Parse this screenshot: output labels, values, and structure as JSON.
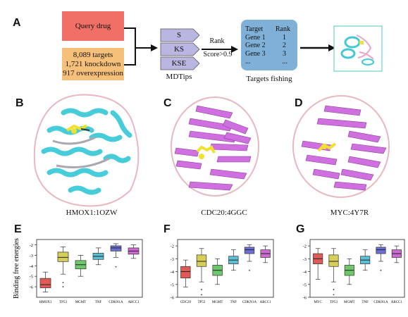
{
  "panels": {
    "a": "A",
    "b": "B",
    "c": "C",
    "d": "D",
    "e": "E",
    "f": "F",
    "g": "G"
  },
  "flow": {
    "query_drug": "Query drug",
    "targets_lines": [
      "8,089 targets",
      "1,721 knockdown",
      "917 overexpression"
    ],
    "mdtips_items": [
      "S",
      "KS",
      "KSE"
    ],
    "mdtips_label": "MDTips",
    "rank_label": "Rank",
    "score_label": "Score>0.9",
    "fishing_table": {
      "headers": [
        "Target",
        "Rank"
      ],
      "rows": [
        [
          "Gene 1",
          "1"
        ],
        [
          "Gene 2",
          "2"
        ],
        [
          "Gene 3",
          "3"
        ],
        [
          "...",
          "..."
        ]
      ]
    },
    "fishing_label": "Targets fishing"
  },
  "structures": [
    {
      "id": "HMOX1:1OZW",
      "label": "HMOX1:1OZW",
      "helix_color": "#4fd0dc"
    },
    {
      "id": "CDC20:4GGC",
      "label": "CDC20:4GGC",
      "sheet_color": "#d070e0"
    },
    {
      "id": "MYC:4Y7R",
      "label": "MYC:4Y7R",
      "sheet_color": "#d070e0"
    }
  ],
  "chart_data": [
    {
      "type": "box",
      "ylabel": "Binding free energies",
      "ylim": [
        -7,
        -1.5
      ],
      "yticks": [
        -2,
        -3,
        -4,
        -5,
        -6
      ],
      "categories": [
        "HMOX1",
        "TP53",
        "MGMT",
        "TNF",
        "CDKN1A",
        "ABCC1"
      ],
      "colors": [
        "#e05a58",
        "#d6ce56",
        "#6ec76a",
        "#5bc0d6",
        "#6a6ed6",
        "#cc6ad0"
      ],
      "boxes": [
        {
          "min": -6.5,
          "q1": -6.1,
          "median": -5.8,
          "q3": -5.2,
          "max": -4.6,
          "outliers": []
        },
        {
          "min": -4.8,
          "q1": -3.6,
          "median": -3.2,
          "q3": -2.7,
          "max": -2.2,
          "outliers": [
            -5.6,
            -6.0
          ]
        },
        {
          "min": -5.0,
          "q1": -4.3,
          "median": -3.9,
          "q3": -3.5,
          "max": -3.0,
          "outliers": []
        },
        {
          "min": -3.9,
          "q1": -3.4,
          "median": -3.1,
          "q3": -2.8,
          "max": -2.3,
          "outliers": []
        },
        {
          "min": -3.2,
          "q1": -2.6,
          "median": -2.3,
          "q3": -2.1,
          "max": -1.9,
          "outliers": [
            -4.1
          ]
        },
        {
          "min": -3.3,
          "q1": -2.9,
          "median": -2.6,
          "q3": -2.3,
          "max": -2.0,
          "outliers": []
        }
      ]
    },
    {
      "type": "box",
      "ylabel": "",
      "ylim": [
        -6,
        -1.5
      ],
      "yticks": [
        -2,
        -3,
        -4,
        -5,
        -6
      ],
      "categories": [
        "CDC20",
        "TP53",
        "MGMT",
        "TNF",
        "CDKN1A",
        "ABCC1"
      ],
      "colors": [
        "#e05a58",
        "#d6ce56",
        "#6ec76a",
        "#5bc0d6",
        "#6a6ed6",
        "#cc6ad0"
      ],
      "boxes": [
        {
          "min": -5.2,
          "q1": -4.5,
          "median": -4.0,
          "q3": -3.6,
          "max": -3.1,
          "outliers": []
        },
        {
          "min": -4.8,
          "q1": -3.6,
          "median": -3.2,
          "q3": -2.7,
          "max": -2.2,
          "outliers": [
            -5.4,
            -5.8
          ]
        },
        {
          "min": -5.0,
          "q1": -4.3,
          "median": -3.9,
          "q3": -3.5,
          "max": -3.0,
          "outliers": []
        },
        {
          "min": -3.9,
          "q1": -3.4,
          "median": -3.1,
          "q3": -2.8,
          "max": -2.3,
          "outliers": []
        },
        {
          "min": -3.2,
          "q1": -2.6,
          "median": -2.3,
          "q3": -2.1,
          "max": -1.9,
          "outliers": [
            -3.9
          ]
        },
        {
          "min": -3.3,
          "q1": -2.9,
          "median": -2.6,
          "q3": -2.3,
          "max": -2.0,
          "outliers": []
        }
      ]
    },
    {
      "type": "box",
      "ylabel": "",
      "ylim": [
        -6,
        -1.5
      ],
      "yticks": [
        -2,
        -3,
        -4,
        -5,
        -6
      ],
      "categories": [
        "MYC",
        "TP53",
        "MGMT",
        "TNF",
        "CDKN1A",
        "ABCC1"
      ],
      "colors": [
        "#e05a58",
        "#d6ce56",
        "#6ec76a",
        "#5bc0d6",
        "#6a6ed6",
        "#cc6ad0"
      ],
      "boxes": [
        {
          "min": -4.6,
          "q1": -3.4,
          "median": -3.0,
          "q3": -2.6,
          "max": -2.2,
          "outliers": []
        },
        {
          "min": -4.8,
          "q1": -3.6,
          "median": -3.2,
          "q3": -2.7,
          "max": -2.2,
          "outliers": [
            -5.4,
            -5.8
          ]
        },
        {
          "min": -5.0,
          "q1": -4.3,
          "median": -3.9,
          "q3": -3.5,
          "max": -3.0,
          "outliers": []
        },
        {
          "min": -3.9,
          "q1": -3.4,
          "median": -3.1,
          "q3": -2.8,
          "max": -2.3,
          "outliers": []
        },
        {
          "min": -3.2,
          "q1": -2.6,
          "median": -2.3,
          "q3": -2.1,
          "max": -1.9,
          "outliers": [
            -3.9
          ]
        },
        {
          "min": -3.3,
          "q1": -2.9,
          "median": -2.6,
          "q3": -2.3,
          "max": -2.0,
          "outliers": []
        }
      ]
    }
  ]
}
